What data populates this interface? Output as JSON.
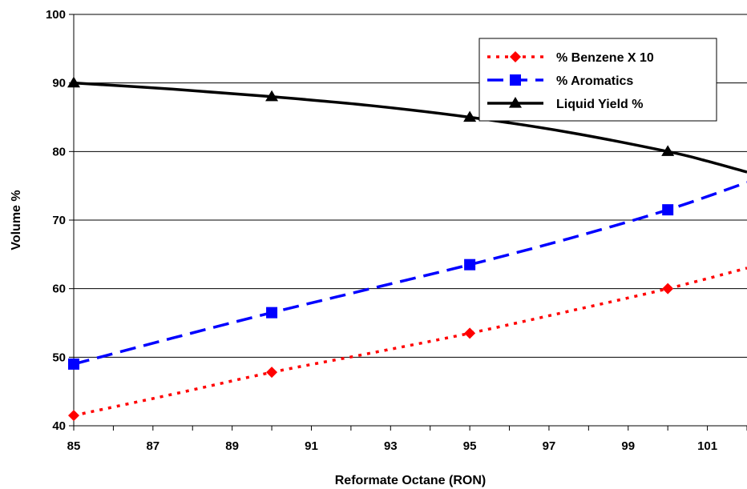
{
  "chart_data": {
    "type": "line",
    "title": "",
    "xlabel": "Reformate Octane (RON)",
    "ylabel": "Volume  %",
    "xlim": [
      85,
      102
    ],
    "ylim": [
      40,
      100
    ],
    "x_ticks": [
      "85",
      "87",
      "89",
      "91",
      "93",
      "95",
      "97",
      "99",
      "101"
    ],
    "y_ticks": [
      "40",
      "50",
      "60",
      "70",
      "80",
      "90",
      "100"
    ],
    "grid": "horizontal",
    "legend_position": "top-right",
    "series": [
      {
        "name": "% Benzene X 10",
        "color": "#ff0000",
        "line_style": "dotted",
        "marker": "diamond",
        "points": [
          [
            85,
            41.5
          ],
          [
            90,
            47.8
          ],
          [
            95,
            53.5
          ],
          [
            100,
            60
          ]
        ],
        "curve": [
          [
            85,
            41.5
          ],
          [
            87.5,
            44.6
          ],
          [
            90,
            47.8
          ],
          [
            92.5,
            50.6
          ],
          [
            95,
            53.5
          ],
          [
            97.5,
            56.7
          ],
          [
            100,
            60
          ],
          [
            102,
            63
          ]
        ]
      },
      {
        "name": "% Aromatics",
        "color": "#0000ff",
        "line_style": "dashed",
        "marker": "square",
        "points": [
          [
            85,
            49
          ],
          [
            90,
            56.5
          ],
          [
            95,
            63.5
          ],
          [
            100,
            71.5
          ]
        ],
        "curve": [
          [
            85,
            49
          ],
          [
            87.5,
            52.8
          ],
          [
            90,
            56.5
          ],
          [
            92.5,
            60
          ],
          [
            95,
            63.5
          ],
          [
            97.5,
            67.3
          ],
          [
            100,
            71.5
          ],
          [
            102,
            75.5
          ]
        ]
      },
      {
        "name": "Liquid Yield %",
        "color": "#000000",
        "line_style": "solid",
        "marker": "triangle",
        "points": [
          [
            85,
            90
          ],
          [
            90,
            88
          ],
          [
            95,
            85
          ],
          [
            100,
            80
          ]
        ],
        "curve": [
          [
            85,
            90
          ],
          [
            87.5,
            89.1
          ],
          [
            90,
            88
          ],
          [
            92.5,
            86.7
          ],
          [
            95,
            85
          ],
          [
            97.5,
            82.8
          ],
          [
            100,
            80
          ],
          [
            101,
            78.6
          ],
          [
            102,
            77
          ]
        ]
      }
    ]
  }
}
